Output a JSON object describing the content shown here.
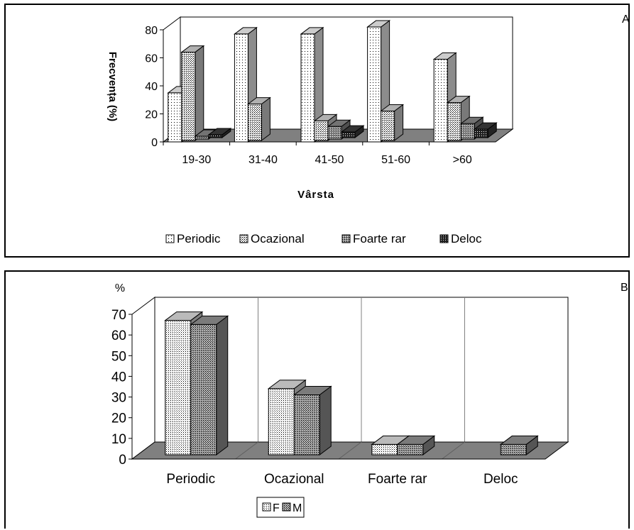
{
  "chart_data": [
    {
      "type": "bar",
      "panel_label": "A",
      "title": "",
      "xlabel": "Vârsta",
      "ylabel": "Frecvența (%)",
      "ylim": [
        0,
        80
      ],
      "yticks": [
        "0",
        "20",
        "40",
        "60",
        "80"
      ],
      "categories": [
        "19-30",
        "31-40",
        "41-50",
        "51-60",
        ">60"
      ],
      "series": [
        {
          "name": "Periodic",
          "values": [
            35,
            77,
            77,
            82,
            59
          ]
        },
        {
          "name": "Ocazional",
          "values": [
            63,
            26,
            14,
            21,
            27
          ]
        },
        {
          "name": "Foarte rar",
          "values": [
            2,
            0,
            9,
            0,
            11
          ]
        },
        {
          "name": "Deloc",
          "values": [
            2,
            0,
            4,
            0,
            6
          ]
        }
      ],
      "legend_position": "bottom",
      "grid": false
    },
    {
      "type": "bar",
      "panel_label": "B",
      "title": "",
      "xlabel": "",
      "ylabel": "%",
      "ylim": [
        0,
        70
      ],
      "yticks": [
        "0",
        "10",
        "20",
        "30",
        "40",
        "50",
        "60",
        "70"
      ],
      "categories": [
        "Periodic",
        "Ocazional",
        "Foarte rar",
        "Deloc"
      ],
      "series": [
        {
          "name": "F",
          "values": [
            65,
            32,
            5,
            0
          ]
        },
        {
          "name": "M",
          "values": [
            63,
            29,
            5,
            5
          ]
        }
      ],
      "legend_position": "bottom",
      "grid": true
    }
  ],
  "colors": {
    "floor": "#808080",
    "Periodic": "#ffffff",
    "Ocazional": "#dcdcdc",
    "Foarte rar": "#909090",
    "Deloc": "#404040",
    "F": "#e8e8e8",
    "M": "#9a9a9a"
  }
}
